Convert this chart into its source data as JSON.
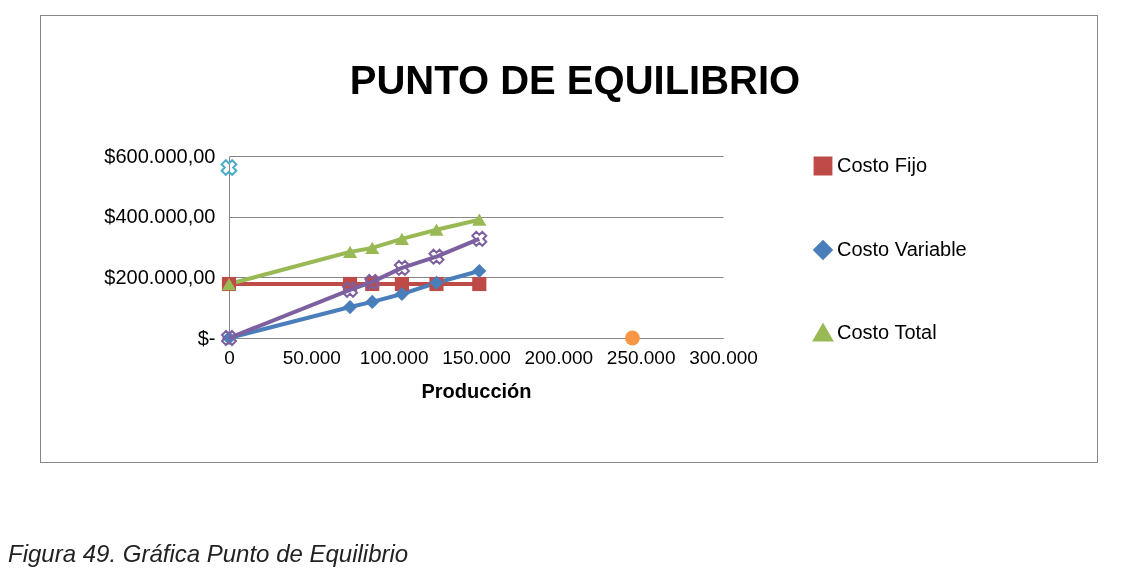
{
  "chart_data": {
    "type": "line",
    "title": "PUNTO DE EQUILIBRIO",
    "xlabel": "Producción",
    "x": [
      0,
      73500,
      87000,
      105000,
      126000,
      152000
    ],
    "series": [
      {
        "name": "Costo Fijo",
        "color": "#be4b48",
        "marker": "square",
        "values": [
          178000,
          178000,
          178000,
          178000,
          178000,
          178000
        ]
      },
      {
        "name": "Costo Variable",
        "color": "#4a7ebb",
        "marker": "diamond",
        "values": [
          0,
          102000,
          119000,
          145000,
          182000,
          221000
        ]
      },
      {
        "name": "Costo Total",
        "color": "#98b954",
        "marker": "triangle",
        "values": [
          178000,
          284000,
          297000,
          327000,
          357000,
          390000
        ]
      },
      {
        "color": "#7d60a0",
        "marker": "cross",
        "values": [
          0,
          159000,
          185000,
          231000,
          268000,
          327000
        ]
      },
      {
        "type": "scatter",
        "color": "#4bacc6",
        "marker": "cross",
        "x": [
          0
        ],
        "values": [
          562000
        ]
      },
      {
        "type": "scatter",
        "color": "#f79646",
        "marker": "circle",
        "x": [
          245000
        ],
        "values": [
          0
        ]
      }
    ],
    "xlim": [
      0,
      300000
    ],
    "xticks": [
      0,
      {
        "value": 50000,
        "label": "50.000"
      },
      {
        "value": 100000,
        "label": "100.000"
      },
      {
        "value": 150000,
        "label": "150.000"
      },
      {
        "value": 200000,
        "label": "200.000"
      },
      {
        "value": 250000,
        "label": "250.000"
      },
      {
        "value": 300000,
        "label": "300.000"
      }
    ],
    "ylim": [
      0,
      600000
    ],
    "yticks": [
      {
        "value": 0,
        "label": "$-"
      },
      {
        "value": 200000,
        "label": "$200.000,00"
      },
      {
        "value": 400000,
        "label": "$400.000,00"
      },
      {
        "value": 600000,
        "label": "$600.000,00"
      }
    ],
    "grid": "y",
    "legend": "right",
    "annotations": [
      "Figura 49. Gráfica Punto de Equilibrio"
    ]
  }
}
